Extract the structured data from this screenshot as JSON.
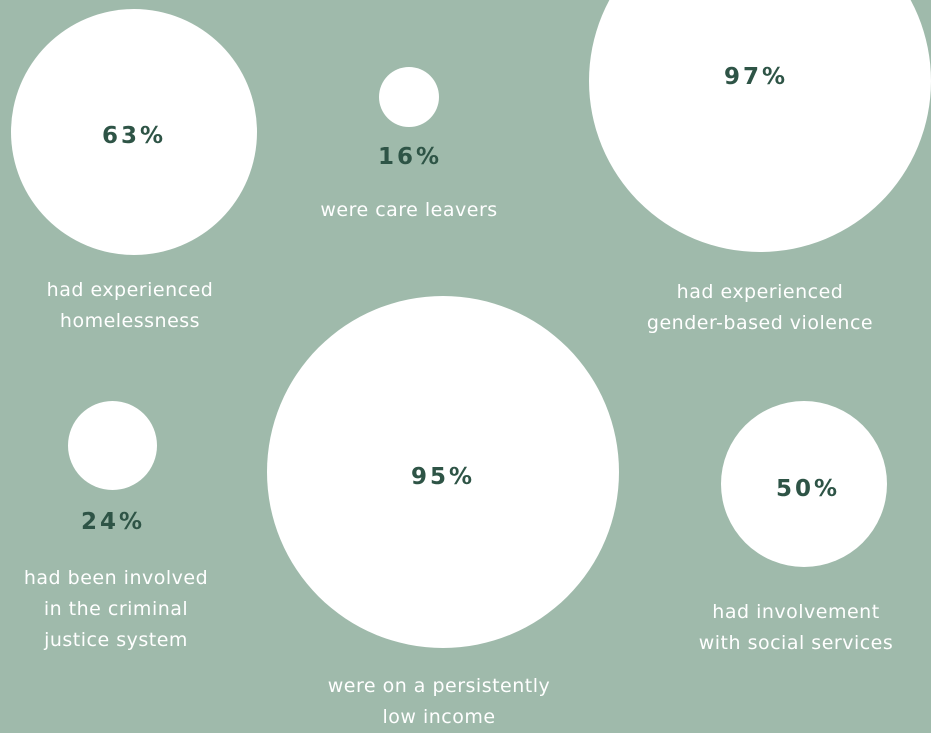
{
  "stats": [
    {
      "value": "63%",
      "lines": [
        "had experienced",
        "homelessness"
      ]
    },
    {
      "value": "16%",
      "lines": [
        "were care leavers"
      ]
    },
    {
      "value": "97%",
      "lines": [
        "had experienced",
        "gender-based violence"
      ]
    },
    {
      "value": "24%",
      "lines": [
        "had been involved",
        "in the criminal",
        "justice system"
      ]
    },
    {
      "value": "95%",
      "lines": [
        "were on a persistently",
        "low income"
      ]
    },
    {
      "value": "50%",
      "lines": [
        "had involvement",
        "with social services"
      ]
    }
  ],
  "colors": {
    "background": "#9fbaab",
    "circle": "#ffffff",
    "percent_text": "#2e5446",
    "label_text": "#ffffff"
  }
}
